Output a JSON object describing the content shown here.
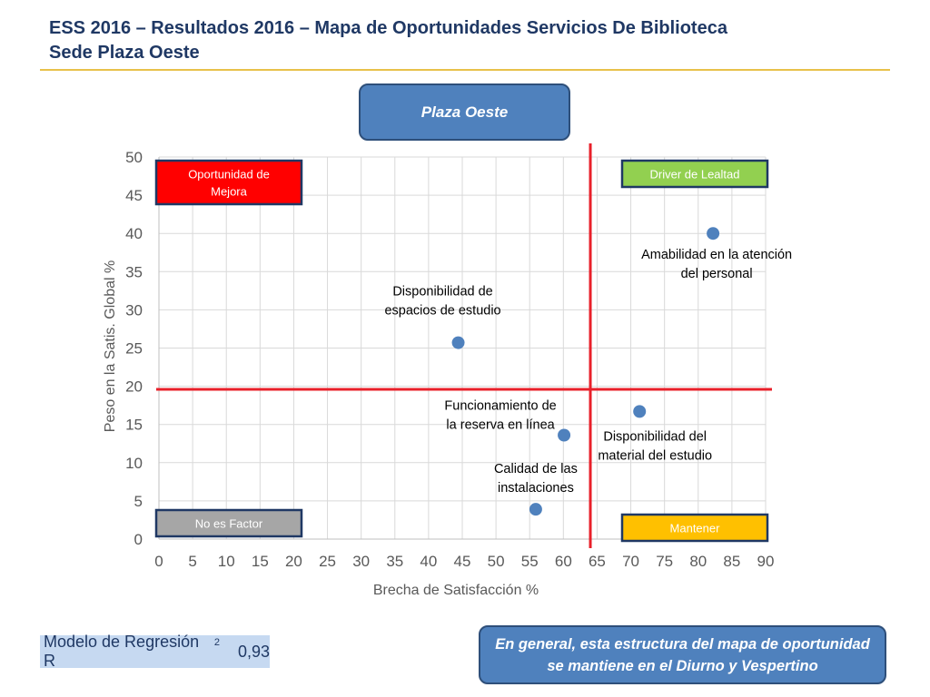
{
  "header": {
    "title_line1": "ESS 2016 – Resultados 2016 – Mapa de Oportunidades Servicios De Biblioteca",
    "title_line2": "Sede Plaza Oeste"
  },
  "segment_label": "Plaza Oeste",
  "regression": {
    "label": "Modelo de Regresión R",
    "superscript": "2",
    "value": "0,93"
  },
  "note": "En general, esta estructura del mapa de oportunidad se mantiene en el Diurno y Vespertino",
  "chart_data": {
    "type": "scatter",
    "xlabel": "Brecha de Satisfacción %",
    "ylabel": "Peso en la Satis. Global %",
    "xlim": [
      0,
      90
    ],
    "ylim": [
      0,
      50
    ],
    "xticks": [
      0,
      5,
      10,
      15,
      20,
      25,
      30,
      35,
      40,
      45,
      50,
      55,
      60,
      65,
      70,
      75,
      80,
      85,
      90
    ],
    "yticks": [
      0,
      5,
      10,
      15,
      20,
      25,
      30,
      35,
      40,
      45,
      50
    ],
    "grid": true,
    "point_color": "#4f81bd",
    "reference_line_color": "#e8202a",
    "reference_lines": {
      "x": 64,
      "y": 19.6
    },
    "points": [
      {
        "x": 82.2,
        "y": 40.0,
        "label": [
          "Amabilidad en la atención",
          "del personal"
        ]
      },
      {
        "x": 44.4,
        "y": 25.7,
        "label": [
          "Disponibilidad de",
          "espacios de estudio"
        ]
      },
      {
        "x": 71.3,
        "y": 16.7,
        "label": [
          "Disponibilidad del",
          "material del estudio"
        ]
      },
      {
        "x": 60.1,
        "y": 13.6,
        "label": [
          "Funcionamiento de",
          "la reserva en línea"
        ]
      },
      {
        "x": 55.9,
        "y": 3.9,
        "label": [
          "Calidad de las",
          "instalaciones"
        ]
      }
    ],
    "quadrants": [
      {
        "name": "quadrant-oportunidad",
        "label": [
          "Oportunidad de",
          "Mejora"
        ],
        "color": "#ff0000",
        "text_color": "#ffffff",
        "position": "top-left"
      },
      {
        "name": "quadrant-driver",
        "label": [
          "Driver de Lealtad"
        ],
        "color": "#92d050",
        "text_color": "#ffffff",
        "position": "top-right"
      },
      {
        "name": "quadrant-no-factor",
        "label": [
          "No es Factor"
        ],
        "color": "#a6a6a6",
        "text_color": "#ffffff",
        "position": "bottom-left"
      },
      {
        "name": "quadrant-mantener",
        "label": [
          "Mantener"
        ],
        "color": "#ffc000",
        "text_color": "#ffffff",
        "position": "bottom-right"
      }
    ]
  }
}
